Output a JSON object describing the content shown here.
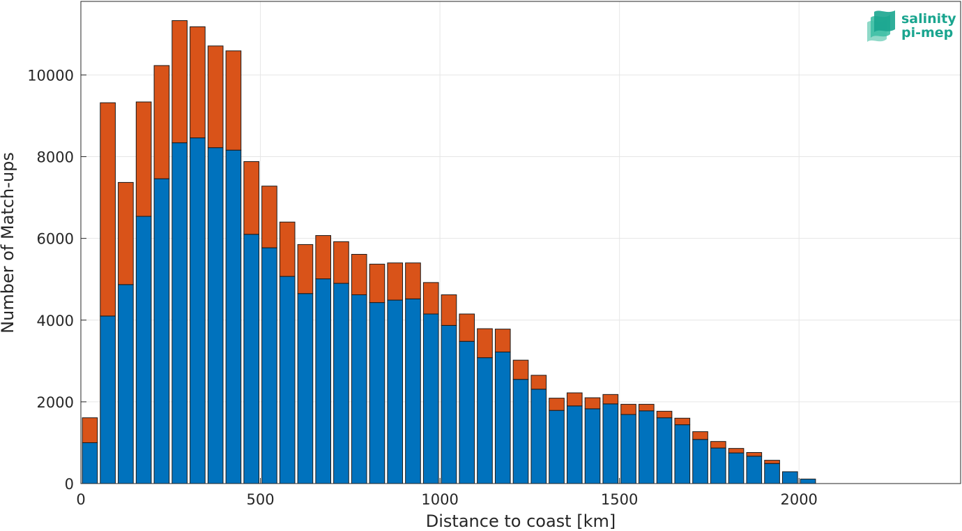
{
  "chart_data": {
    "type": "bar",
    "stacked": true,
    "xlabel": "Distance to coast [km]",
    "ylabel": "Number of Match-ups",
    "xlim": [
      0,
      2450
    ],
    "ylim": [
      0,
      11800
    ],
    "xticks": [
      0,
      500,
      1000,
      1500,
      2000
    ],
    "yticks": [
      0,
      2000,
      4000,
      6000,
      8000,
      10000
    ],
    "grid": true,
    "bin_width_km": 50,
    "x": [
      25,
      75,
      125,
      175,
      225,
      275,
      325,
      375,
      425,
      475,
      525,
      575,
      625,
      675,
      725,
      775,
      825,
      875,
      925,
      975,
      1025,
      1075,
      1125,
      1175,
      1225,
      1275,
      1325,
      1375,
      1425,
      1475,
      1525,
      1575,
      1625,
      1675,
      1725,
      1775,
      1825,
      1875,
      1925,
      1975,
      2025,
      2075,
      2125,
      2175,
      2225,
      2275,
      2325,
      2375
    ],
    "series": [
      {
        "color": "#0072bd",
        "values": [
          1000,
          4100,
          4870,
          6540,
          7460,
          8340,
          8460,
          8220,
          8160,
          6100,
          5770,
          5070,
          4650,
          5010,
          4900,
          4620,
          4430,
          4490,
          4520,
          4150,
          3870,
          3480,
          3080,
          3220,
          2550,
          2310,
          1790,
          1900,
          1830,
          1950,
          1690,
          1780,
          1610,
          1440,
          1080,
          870,
          750,
          670,
          490,
          290,
          110,
          0,
          0,
          0,
          0,
          0,
          0,
          0
        ]
      },
      {
        "color": "#d95319",
        "values": [
          610,
          5220,
          2500,
          2800,
          2770,
          2990,
          2720,
          2490,
          2430,
          1780,
          1510,
          1330,
          1200,
          1060,
          1020,
          990,
          940,
          910,
          880,
          770,
          750,
          670,
          710,
          560,
          470,
          340,
          300,
          320,
          270,
          230,
          250,
          160,
          160,
          160,
          190,
          160,
          110,
          90,
          80,
          0,
          0,
          0,
          0,
          0,
          0,
          0,
          0,
          0
        ]
      }
    ]
  },
  "logo": {
    "name": "salinity-pi-mep-logo",
    "line1": "salinity",
    "line2": "pi-mep",
    "color": "#1aa58f"
  }
}
